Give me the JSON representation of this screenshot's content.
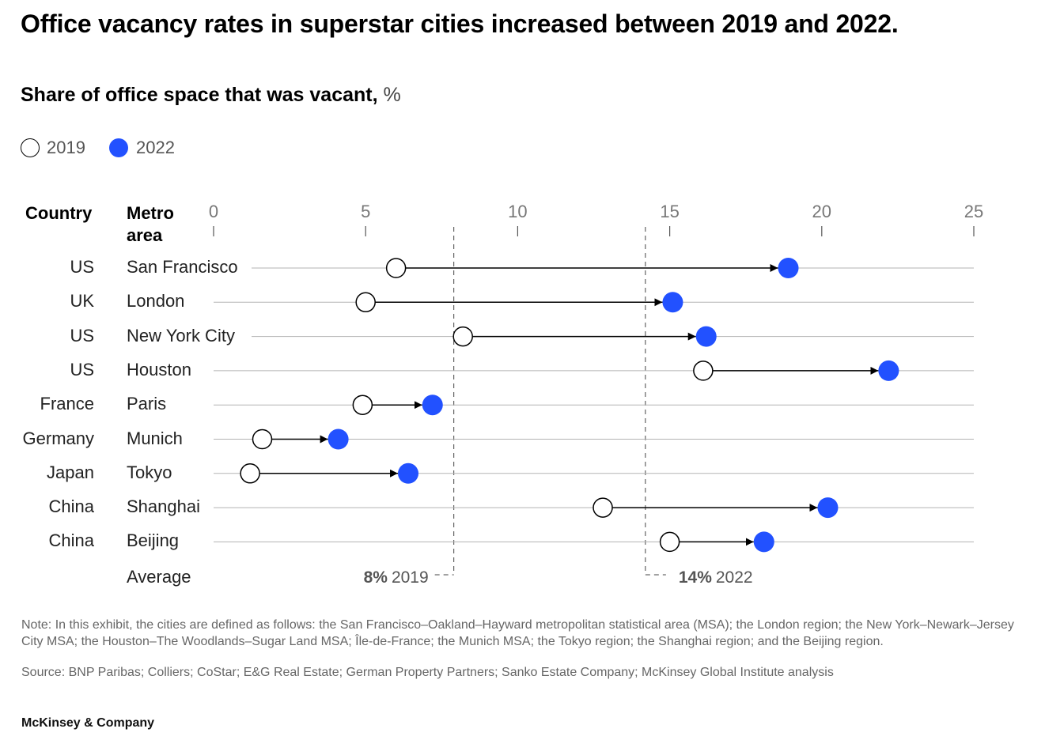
{
  "title": "Office vacancy rates in superstar cities increased between 2019 and 2022.",
  "subtitle": "Share of office space that was vacant,",
  "subtitle_unit": "%",
  "legend": {
    "items": [
      {
        "label": "2019",
        "style": "hollow"
      },
      {
        "label": "2022",
        "style": "filled",
        "color": "#2251ff"
      }
    ]
  },
  "headers": {
    "country": "Country",
    "metro_line1": "Metro",
    "metro_line2": "area"
  },
  "chart_data": {
    "type": "dumbbell",
    "title": "Office vacancy rates in superstar cities increased between 2019 and 2022.",
    "ylabel": "Share of office space that was vacant, %",
    "xlim": [
      0,
      25
    ],
    "xticks": [
      "0",
      "5",
      "10",
      "15",
      "20",
      "25"
    ],
    "tick_values": [
      0,
      5,
      10,
      15,
      20,
      25
    ],
    "series": [
      {
        "name": "2019",
        "style": "hollow"
      },
      {
        "name": "2022",
        "style": "filled",
        "color": "#2251ff"
      }
    ],
    "rows": [
      {
        "country": "US",
        "metro": "San Francisco",
        "v2019": 6.0,
        "v2022": 18.9
      },
      {
        "country": "UK",
        "metro": "London",
        "v2019": 5.0,
        "v2022": 15.1
      },
      {
        "country": "US",
        "metro": "New York City",
        "v2019": 8.2,
        "v2022": 16.2
      },
      {
        "country": "US",
        "metro": "Houston",
        "v2019": 16.1,
        "v2022": 22.2
      },
      {
        "country": "France",
        "metro": "Paris",
        "v2019": 4.9,
        "v2022": 7.2
      },
      {
        "country": "Germany",
        "metro": "Munich",
        "v2019": 1.6,
        "v2022": 4.1
      },
      {
        "country": "Japan",
        "metro": "Tokyo",
        "v2019": 1.2,
        "v2022": 6.4
      },
      {
        "country": "China",
        "metro": "Shanghai",
        "v2019": 12.8,
        "v2022": 20.2
      },
      {
        "country": "China",
        "metro": "Beijing",
        "v2019": 15.0,
        "v2022": 18.1
      }
    ],
    "average": {
      "label": "Average",
      "v2019": 7.9,
      "v2022": 14.2,
      "label_2019_bold": "8%",
      "label_2019_year": "2019",
      "label_2022_bold": "14%",
      "label_2022_year": "2022"
    },
    "colors": {
      "filled": "#2251ff",
      "line": "#000000",
      "grid": "#b3b3b3",
      "tick_text": "#777777"
    }
  },
  "footer": {
    "note": "Note: In this exhibit, the cities are defined as follows: the San Francisco–Oakland–Hayward metropolitan statistical area (MSA); the London region; the New York–Newark–Jersey City MSA; the Houston–The Woodlands–Sugar Land MSA; Île-de-France; the Munich MSA; the Tokyo region; the Shanghai region; and the Beijing region.",
    "source": "Source: BNP Paribas; Colliers; CoStar; E&G Real Estate; German Property Partners; Sanko Estate Company; McKinsey Global Institute analysis",
    "brand": "McKinsey & Company"
  }
}
